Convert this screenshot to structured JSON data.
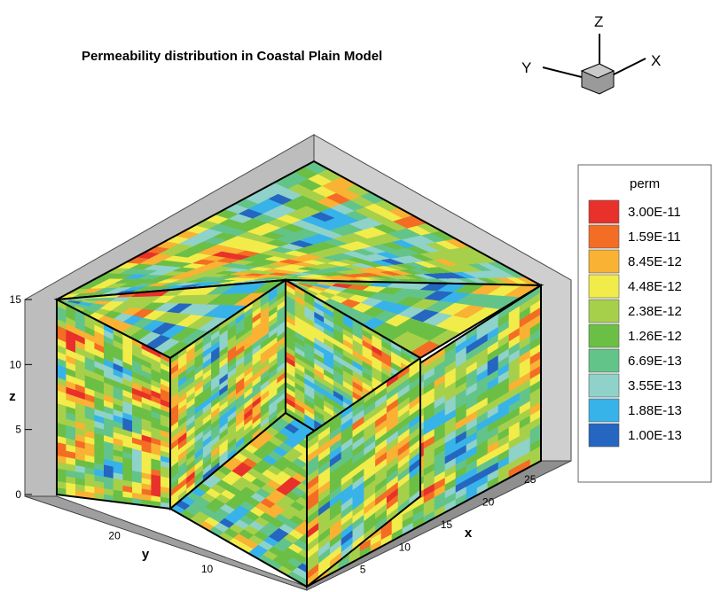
{
  "chart_data": {
    "type": "3d-contour",
    "title": "Permeability distribution in Coastal Plain Model",
    "variable": "perm",
    "xlabel": "x",
    "ylabel": "y",
    "zlabel": "z",
    "x_ticks": [
      "5",
      "10",
      "15",
      "20",
      "25"
    ],
    "y_ticks": [
      "10",
      "20"
    ],
    "z_ticks": [
      "0",
      "5",
      "10",
      "15"
    ],
    "triad_labels": {
      "x": "X",
      "y": "Y",
      "z": "Z"
    },
    "legend": {
      "title": "perm",
      "levels": [
        {
          "label": "3.00E-11",
          "color": "#e8312a"
        },
        {
          "label": "1.59E-11",
          "color": "#f36d24"
        },
        {
          "label": "8.45E-12",
          "color": "#f9b233"
        },
        {
          "label": "4.48E-12",
          "color": "#f2ec4a"
        },
        {
          "label": "2.38E-12",
          "color": "#a7d04a"
        },
        {
          "label": "1.26E-12",
          "color": "#6cbf45"
        },
        {
          "label": "6.69E-13",
          "color": "#63c48a"
        },
        {
          "label": "3.55E-13",
          "color": "#8fd2c9"
        },
        {
          "label": "1.88E-13",
          "color": "#37b3ea"
        },
        {
          "label": "1.00E-13",
          "color": "#2466c0"
        }
      ]
    }
  }
}
